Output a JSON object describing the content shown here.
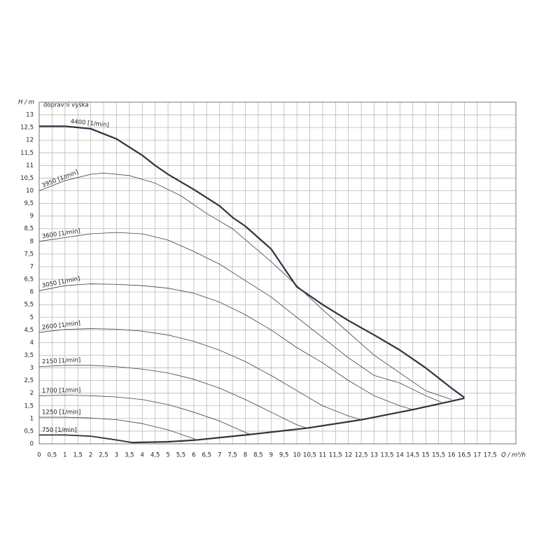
{
  "chart_data": {
    "type": "line",
    "y_label": "H / m",
    "y_title": "dopravní výška",
    "x_label": "Q / m³/h",
    "xlim": [
      0,
      18.5
    ],
    "ylim": [
      0,
      13.5
    ],
    "grid": true,
    "xticks": [
      0,
      {
        "value": 0.5,
        "label": "0,5"
      },
      1,
      {
        "value": 1.5,
        "label": "1,5"
      },
      2,
      {
        "value": 2.5,
        "label": "2,5"
      },
      3,
      {
        "value": 3.5,
        "label": "3,5"
      },
      4,
      {
        "value": 4.5,
        "label": "4,5"
      },
      5,
      {
        "value": 5.5,
        "label": "5,5"
      },
      6,
      {
        "value": 6.5,
        "label": "6,5"
      },
      7,
      {
        "value": 7.5,
        "label": "7,5"
      },
      8,
      {
        "value": 8.5,
        "label": "8,5"
      },
      9,
      {
        "value": 9.5,
        "label": "9,5"
      },
      10,
      {
        "value": 10.5,
        "label": "10,5"
      },
      11,
      {
        "value": 11.5,
        "label": "11,5"
      },
      12,
      {
        "value": 12.5,
        "label": "12,5"
      },
      13,
      {
        "value": 13.5,
        "label": "13,5"
      },
      14,
      {
        "value": 14.5,
        "label": "14,5"
      },
      15,
      {
        "value": 15.5,
        "label": "15,5"
      },
      16,
      {
        "value": 16.5,
        "label": "16,5"
      },
      17,
      {
        "value": 17.5,
        "label": "17,5"
      }
    ],
    "yticks": [
      0,
      {
        "value": 0.5,
        "label": "0,5"
      },
      1,
      {
        "value": 1.5,
        "label": "1,5"
      },
      2,
      {
        "value": 2.5,
        "label": "2,5"
      },
      3,
      {
        "value": 3.5,
        "label": "3,5"
      },
      4,
      {
        "value": 4.5,
        "label": "4,5"
      },
      5,
      {
        "value": 5.5,
        "label": "5,5"
      },
      6,
      {
        "value": 6.5,
        "label": "6,5"
      },
      7,
      {
        "value": 7.5,
        "label": "7,5"
      },
      8,
      {
        "value": 8.5,
        "label": "8,5"
      },
      9,
      {
        "value": 9.5,
        "label": "9,5"
      },
      10,
      {
        "value": 10.5,
        "label": "10,5"
      },
      11,
      {
        "value": 11.5,
        "label": "11,5"
      },
      12,
      {
        "value": 12.5,
        "label": "12,5"
      },
      13
    ],
    "series": [
      {
        "name": "4400 [1/min]",
        "color": "#2b3440",
        "line_width": 2.2,
        "x": [
          0,
          1,
          1.5,
          2,
          3,
          4,
          4.5,
          5,
          6,
          7,
          7.5,
          8,
          9,
          10,
          11,
          12,
          13,
          14,
          15,
          15.5,
          16,
          16.5
        ],
        "values": [
          12.55,
          12.55,
          12.5,
          12.45,
          12.05,
          11.4,
          11.0,
          10.65,
          10.05,
          9.4,
          8.95,
          8.6,
          7.7,
          6.2,
          5.5,
          4.87,
          4.3,
          3.7,
          3.0,
          2.6,
          2.2,
          1.83
        ]
      },
      {
        "name": "3950 [1/min]",
        "color": "#3a3f47",
        "line_width": 0.8,
        "x": [
          0,
          1,
          2,
          2.5,
          3.5,
          4.5,
          5.5,
          6.5,
          7.5,
          9,
          11,
          13,
          15,
          16
        ],
        "values": [
          10,
          10.4,
          10.65,
          10.7,
          10.6,
          10.3,
          9.8,
          9.1,
          8.5,
          7.2,
          5.3,
          3.5,
          2.1,
          1.75
        ]
      },
      {
        "name": "3600 [1/min]",
        "color": "#3a3f47",
        "line_width": 0.8,
        "x": [
          0,
          1,
          2,
          3,
          4,
          5,
          6,
          7,
          8,
          9,
          10,
          11,
          12,
          13,
          14,
          15,
          15.6
        ],
        "values": [
          8,
          8.15,
          8.3,
          8.35,
          8.3,
          8.05,
          7.6,
          7.1,
          6.45,
          5.8,
          5.0,
          4.2,
          3.4,
          2.7,
          2.4,
          1.9,
          1.65
        ]
      },
      {
        "name": "3050 [1/min]",
        "color": "#3a3f47",
        "line_width": 0.8,
        "x": [
          0,
          1,
          2,
          3,
          4,
          5,
          6,
          7,
          8,
          9,
          10,
          11,
          12,
          13,
          14,
          14.5
        ],
        "values": [
          6.05,
          6.25,
          6.32,
          6.3,
          6.25,
          6.15,
          5.95,
          5.6,
          5.1,
          4.5,
          3.8,
          3.2,
          2.5,
          1.9,
          1.5,
          1.35
        ]
      },
      {
        "name": "2600 [1/min]",
        "color": "#3a3f47",
        "line_width": 0.8,
        "x": [
          0,
          1,
          2,
          3,
          4,
          5,
          6,
          7,
          8,
          9,
          10,
          11,
          12,
          12.5
        ],
        "values": [
          4.4,
          4.52,
          4.55,
          4.53,
          4.45,
          4.3,
          4.05,
          3.7,
          3.25,
          2.7,
          2.1,
          1.5,
          1.1,
          0.95
        ]
      },
      {
        "name": "2150 [1/min]",
        "color": "#3a3f47",
        "line_width": 0.8,
        "x": [
          0,
          1,
          2,
          3,
          4,
          5,
          6,
          7,
          8,
          9,
          10,
          10.4
        ],
        "values": [
          3.05,
          3.1,
          3.1,
          3.05,
          2.95,
          2.8,
          2.55,
          2.2,
          1.75,
          1.25,
          0.75,
          0.62
        ]
      },
      {
        "name": "1700 [1/min]",
        "color": "#3a3f47",
        "line_width": 0.8,
        "x": [
          0,
          1,
          2,
          3,
          4,
          5,
          6,
          7,
          8,
          8.2
        ],
        "values": [
          1.9,
          1.92,
          1.9,
          1.85,
          1.75,
          1.55,
          1.25,
          0.9,
          0.45,
          0.37
        ]
      },
      {
        "name": "1250 [1/min]",
        "color": "#3a3f47",
        "line_width": 0.8,
        "x": [
          0,
          1,
          2,
          3,
          4,
          5,
          6,
          6.1
        ],
        "values": [
          1.05,
          1.05,
          1.02,
          0.95,
          0.8,
          0.55,
          0.2,
          0.15
        ]
      },
      {
        "name": "750 [1/min]",
        "color": "#2b3440",
        "line_width": 1.8,
        "x": [
          0,
          1,
          2,
          3,
          3.6
        ],
        "values": [
          0.35,
          0.35,
          0.3,
          0.15,
          0.05
        ]
      },
      {
        "color": "#2b3440",
        "line_width": 2.2,
        "x": [
          3.6,
          5,
          6.1,
          8.2,
          10.4,
          12.5,
          14.5,
          16.5
        ],
        "values": [
          0.05,
          0.08,
          0.15,
          0.37,
          0.62,
          0.95,
          1.35,
          1.8
        ]
      }
    ]
  }
}
